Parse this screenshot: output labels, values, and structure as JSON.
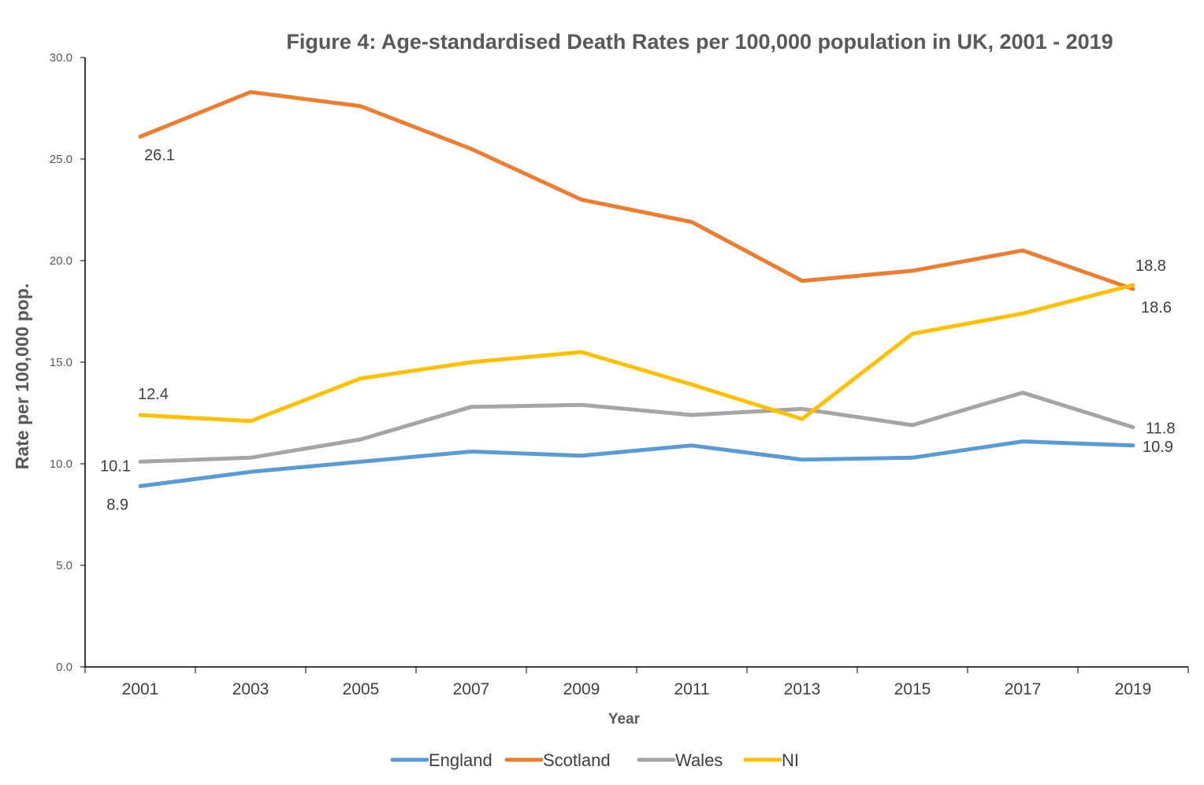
{
  "chart_data": {
    "type": "line",
    "title": "Figure 4: Age-standardised Death Rates per 100,000 population in UK, 2001 - 2019",
    "xlabel": "Year",
    "ylabel": "Rate per 100,000 pop.",
    "x": [
      "2001",
      "2003",
      "2005",
      "2007",
      "2009",
      "2011",
      "2013",
      "2015",
      "2017",
      "2019"
    ],
    "ylim": [
      0,
      30
    ],
    "yticks": [
      "0.0",
      "5.0",
      "10.0",
      "15.0",
      "20.0",
      "25.0",
      "30.0"
    ],
    "grid": false,
    "legend_position": "bottom",
    "series": [
      {
        "name": "England",
        "color": "#5B9BD5",
        "values": [
          8.9,
          9.6,
          10.1,
          10.6,
          10.4,
          10.9,
          10.2,
          10.3,
          11.1,
          10.9
        ]
      },
      {
        "name": "Scotland",
        "color": "#ED7D31",
        "values": [
          26.1,
          28.3,
          27.6,
          25.5,
          23.0,
          21.9,
          19.0,
          19.5,
          20.5,
          18.6
        ]
      },
      {
        "name": "Wales",
        "color": "#A5A5A5",
        "values": [
          10.1,
          10.3,
          11.2,
          12.8,
          12.9,
          12.4,
          12.7,
          11.9,
          13.5,
          11.8
        ]
      },
      {
        "name": "NI",
        "color": "#FFC000",
        "values": [
          12.4,
          12.1,
          14.2,
          15.0,
          15.5,
          13.9,
          12.2,
          16.4,
          17.4,
          18.8
        ]
      }
    ],
    "data_labels": [
      {
        "series": "Scotland",
        "x": "2001",
        "text": "26.1"
      },
      {
        "series": "NI",
        "x": "2001",
        "text": "12.4"
      },
      {
        "series": "Wales",
        "x": "2001",
        "text": "10.1"
      },
      {
        "series": "England",
        "x": "2001",
        "text": "8.9"
      },
      {
        "series": "NI",
        "x": "2019",
        "text": "18.8"
      },
      {
        "series": "Scotland",
        "x": "2019",
        "text": "18.6"
      },
      {
        "series": "Wales",
        "x": "2019",
        "text": "11.8"
      },
      {
        "series": "England",
        "x": "2019",
        "text": "10.9"
      }
    ]
  }
}
